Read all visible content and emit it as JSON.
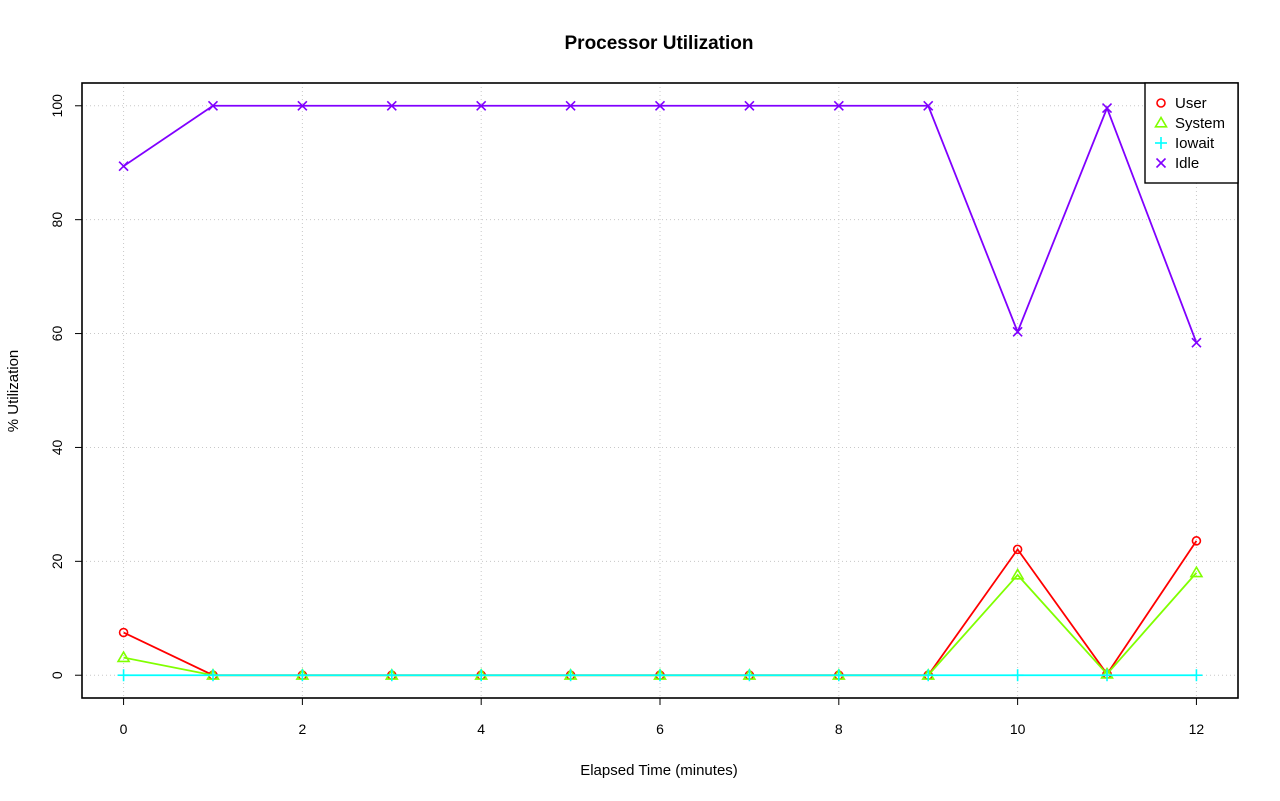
{
  "chart_data": {
    "type": "line",
    "title": "Processor Utilization",
    "xlabel": "Elapsed Time (minutes)",
    "ylabel": "% Utilization",
    "x": [
      0,
      1,
      2,
      3,
      4,
      5,
      6,
      7,
      8,
      9,
      10,
      11,
      12
    ],
    "xlim": [
      0,
      12
    ],
    "ylim": [
      0,
      100
    ],
    "xticks": [
      "0",
      "2",
      "4",
      "6",
      "8",
      "10",
      "12"
    ],
    "yticks": [
      "0",
      "20",
      "40",
      "60",
      "80",
      "100"
    ],
    "grid": true,
    "legend_position": "top-right",
    "series": [
      {
        "name": "User",
        "color": "#ff0000",
        "marker": "circle",
        "values": [
          7.5,
          0,
          0,
          0,
          0,
          0,
          0,
          0,
          0,
          0,
          22.1,
          0.2,
          23.6
        ]
      },
      {
        "name": "System",
        "color": "#80ff00",
        "marker": "triangle",
        "values": [
          3.1,
          0,
          0,
          0,
          0,
          0,
          0,
          0,
          0,
          0,
          17.6,
          0.2,
          18.0
        ]
      },
      {
        "name": "Iowait",
        "color": "#00ffff",
        "marker": "plus",
        "values": [
          0,
          0,
          0,
          0,
          0,
          0,
          0,
          0,
          0,
          0,
          0,
          0,
          0
        ]
      },
      {
        "name": "Idle",
        "color": "#8000ff",
        "marker": "cross",
        "values": [
          89.4,
          100,
          100,
          100,
          100,
          100,
          100,
          100,
          100,
          100,
          60.3,
          99.6,
          58.4
        ]
      }
    ]
  }
}
